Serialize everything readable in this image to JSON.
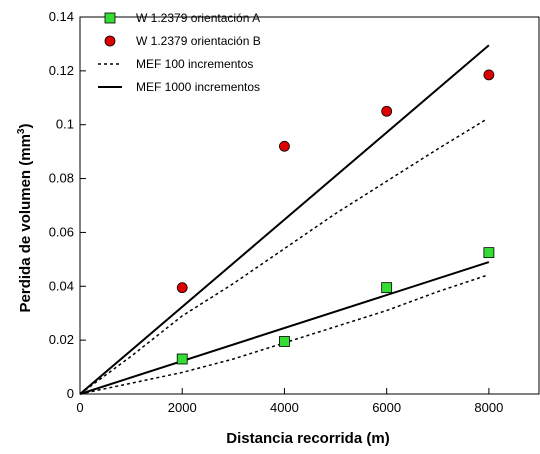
{
  "chart_data": {
    "type": "scatter",
    "xlabel": "Distancia recorrida (m)",
    "ylabel_main": "Perdida de volumen (mm",
    "ylabel_sup": "3",
    "ylabel_close": ")",
    "xlim": [
      0,
      9000
    ],
    "ylim": [
      0,
      0.14
    ],
    "xticks": [
      0,
      2000,
      4000,
      6000,
      8000
    ],
    "xtick_labels": [
      "0",
      "2000",
      "4000",
      "6000",
      "8000"
    ],
    "yticks": [
      0,
      0.02,
      0.04,
      0.06,
      0.08,
      0.1,
      0.12,
      0.14
    ],
    "ytick_labels": [
      "0",
      "0.02",
      "0.04",
      "0.06",
      "0.08",
      "0.1",
      "0.12",
      "0.14"
    ],
    "grid": false,
    "legend_position": "top-left",
    "series": [
      {
        "name": "W 1.2379 orientación A",
        "kind": "points",
        "marker": "square",
        "color": "#33dd33",
        "x": [
          2000,
          4000,
          6000,
          8000
        ],
        "y": [
          0.013,
          0.0195,
          0.0395,
          0.0525
        ]
      },
      {
        "name": "W 1.2379 orientación B",
        "kind": "points",
        "marker": "circle",
        "color": "#dd0000",
        "x": [
          2000,
          4000,
          6000,
          8000
        ],
        "y": [
          0.0395,
          0.092,
          0.105,
          0.1185
        ]
      },
      {
        "name": "MEF 100 incrementos",
        "kind": "line",
        "style": "dashed",
        "color": "#000000",
        "segments": [
          {
            "x": [
              0,
              1000,
              2000,
              3000,
              4000,
              5000,
              6000,
              7000,
              7950
            ],
            "y": [
              0,
              0.014,
              0.029,
              0.041,
              0.054,
              0.067,
              0.079,
              0.091,
              0.102
            ]
          },
          {
            "x": [
              0,
              1000,
              2000,
              3000,
              4000,
              5000,
              6000,
              7000,
              7950
            ],
            "y": [
              0,
              0.004,
              0.008,
              0.013,
              0.019,
              0.025,
              0.031,
              0.038,
              0.044
            ]
          }
        ]
      },
      {
        "name": "MEF 1000 incrementos",
        "kind": "line",
        "style": "solid",
        "color": "#000000",
        "segments": [
          {
            "x": [
              0,
              8000
            ],
            "y": [
              0,
              0.1295
            ]
          },
          {
            "x": [
              0,
              8000
            ],
            "y": [
              0,
              0.049
            ]
          }
        ]
      }
    ]
  }
}
